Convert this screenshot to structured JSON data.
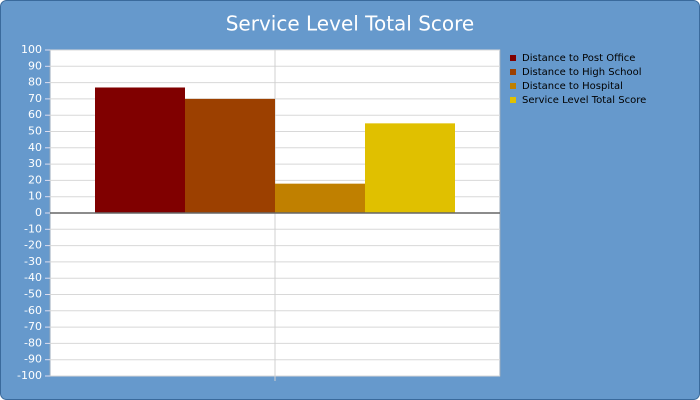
{
  "chart_data": {
    "type": "bar",
    "title": "Service Level Total Score",
    "categories": [
      null
    ],
    "series": [
      {
        "name": "Distance to Post Office",
        "color": "#800000",
        "values": [
          77
        ]
      },
      {
        "name": "Distance to High School",
        "color": "#9c4000",
        "values": [
          70
        ]
      },
      {
        "name": "Distance to Hospital",
        "color": "#c08000",
        "values": [
          18
        ]
      },
      {
        "name": "Service Level Total Score",
        "color": "#e0c000",
        "values": [
          55
        ]
      }
    ],
    "ylim": [
      -100,
      100
    ],
    "yticks": [
      -100,
      -90,
      -80,
      -70,
      -60,
      -50,
      -40,
      -30,
      -20,
      -10,
      0,
      10,
      20,
      30,
      40,
      50,
      60,
      70,
      80,
      90,
      100
    ],
    "grid": true,
    "legend": "right"
  }
}
